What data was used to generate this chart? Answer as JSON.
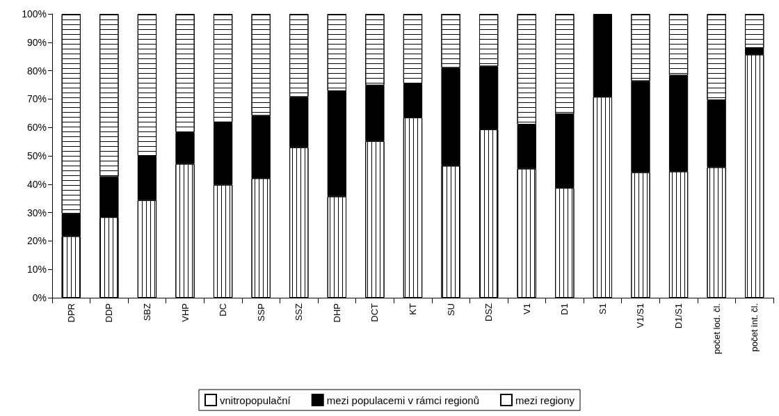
{
  "chart_data": {
    "type": "bar",
    "stacked": true,
    "categories": [
      "DPR",
      "DDP",
      "SBZ",
      "VHP",
      "DC",
      "SSP",
      "SSZ",
      "DHP",
      "DCT",
      "KT",
      "SU",
      "DSZ",
      "V1",
      "D1",
      "S1",
      "V1/S1",
      "D1/S1",
      "počet lod. čl.",
      "počet int. čl."
    ],
    "series": [
      {
        "name": "vnitropopulační",
        "color": "#ffffff",
        "values": [
          21.7,
          28.4,
          34.4,
          47.2,
          39.8,
          42.1,
          53,
          35.7,
          55.2,
          63.5,
          46.5,
          59.3,
          45.5,
          38.7,
          70.8,
          44.2,
          44.5,
          46,
          85.7
        ]
      },
      {
        "name": "mezi populacemi v rámci regionů",
        "color": "#000000",
        "values": [
          7.9,
          14.1,
          15.6,
          11.1,
          22,
          22,
          17.7,
          37.1,
          19.6,
          12,
          34.5,
          22.2,
          15.5,
          26,
          29.2,
          32.1,
          33.8,
          23.6,
          2.3
        ]
      },
      {
        "name": "mezi regiony",
        "color": "#ffffff",
        "values": [
          70.4,
          57.5,
          50,
          41.7,
          38.2,
          35.9,
          29.3,
          27.2,
          25.2,
          24.5,
          19,
          18.5,
          39,
          35.3,
          0,
          23.7,
          21.7,
          30.4,
          12
        ]
      }
    ],
    "ylim": [
      0,
      100
    ],
    "yticks": [
      {
        "value": 0,
        "label": "0%"
      },
      {
        "value": 10,
        "label": "10%"
      },
      {
        "value": 20,
        "label": "20%"
      },
      {
        "value": 30,
        "label": "30%"
      },
      {
        "value": 40,
        "label": "40%"
      },
      {
        "value": 50,
        "label": "50%"
      },
      {
        "value": 60,
        "label": "60%"
      },
      {
        "value": 70,
        "label": "70%"
      },
      {
        "value": 80,
        "label": "80%"
      },
      {
        "value": 90,
        "label": "90%"
      },
      {
        "value": 100,
        "label": "100%"
      }
    ],
    "grid": false,
    "legend": "bottom"
  }
}
